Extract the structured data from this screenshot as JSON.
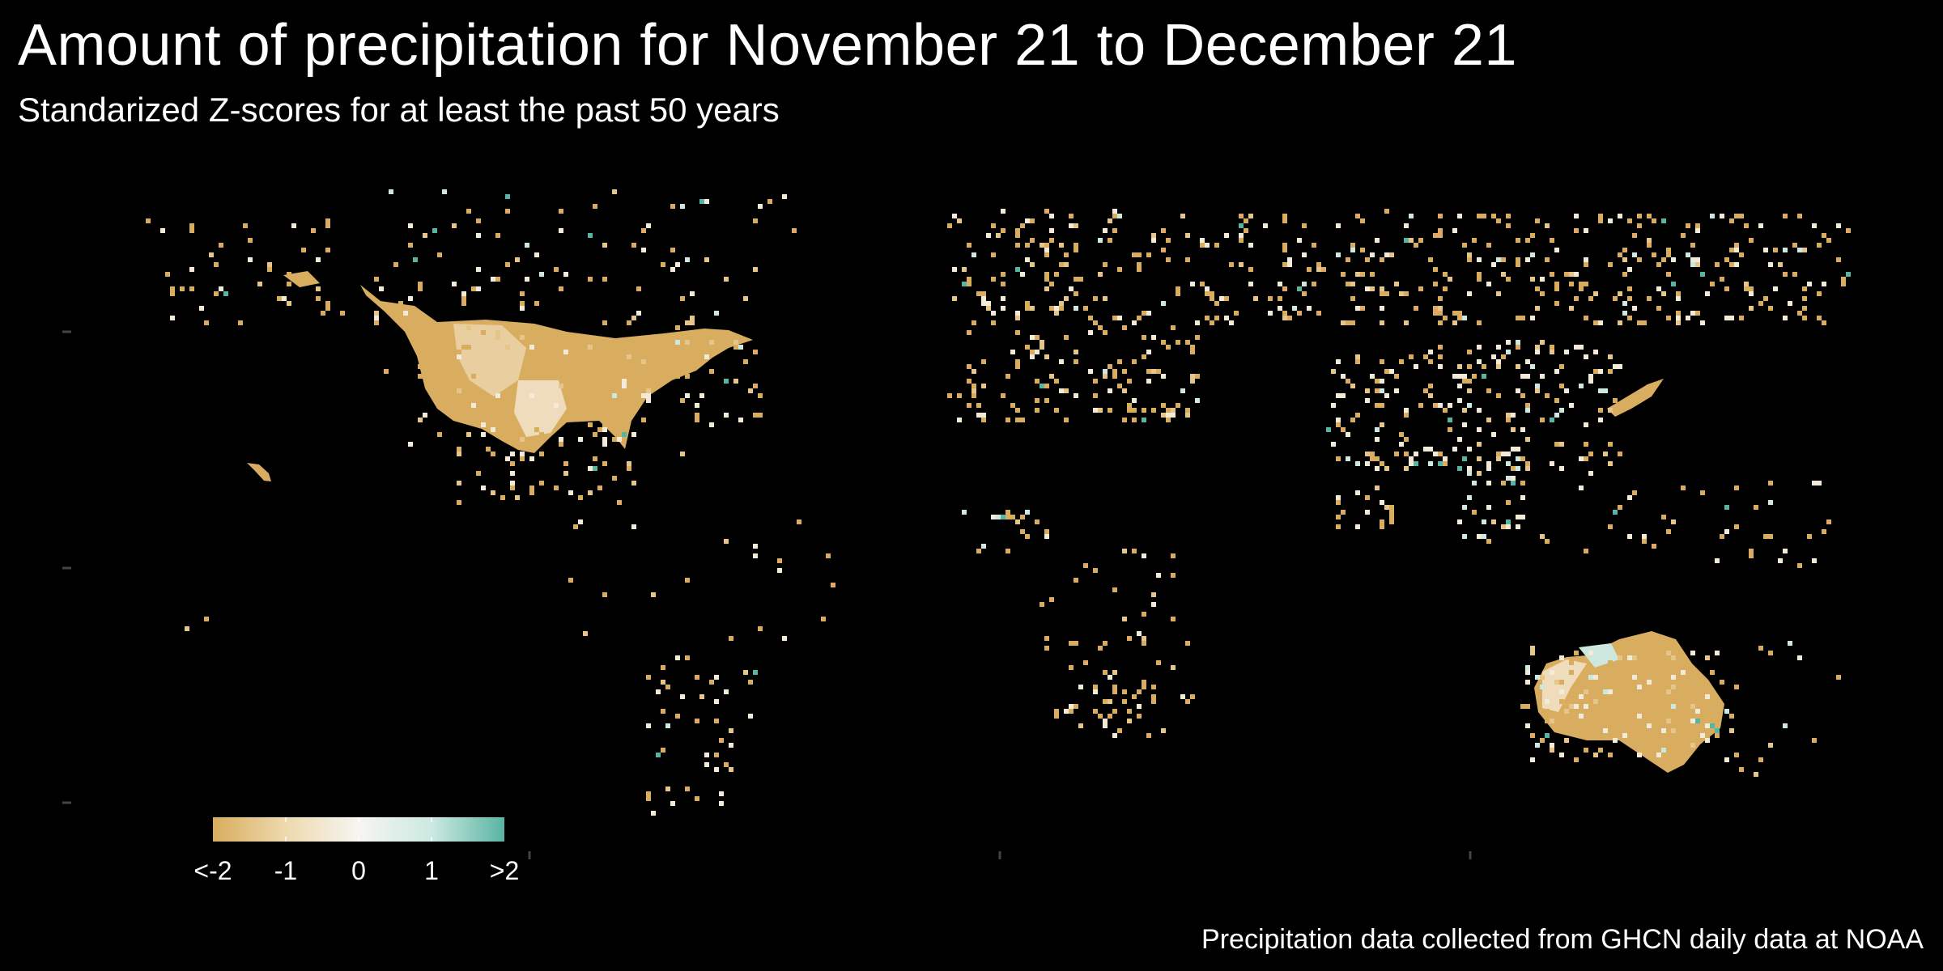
{
  "title": "Amount of precipitation for November 21 to December 21",
  "subtitle": "Standarized Z-scores for at least the past 50 years",
  "caption": "Precipitation data collected from GHCN daily data at NOAA",
  "legend": {
    "colors": [
      "#d9ad5f",
      "#eed9ad",
      "#f6f5f2",
      "#cce9e1",
      "#5ab4a3"
    ],
    "tick_labels": [
      "<-2",
      "-1",
      "0",
      "1",
      ">2"
    ],
    "values": [
      -2,
      -1,
      0,
      1,
      2
    ]
  },
  "palette": {
    "dry": "#d9ad5f",
    "light_dry": "#e6c58a",
    "neutral": "#f3ead8",
    "wet": "#cfe8df",
    "very_wet": "#5ab4a3",
    "background": "#000000"
  }
}
